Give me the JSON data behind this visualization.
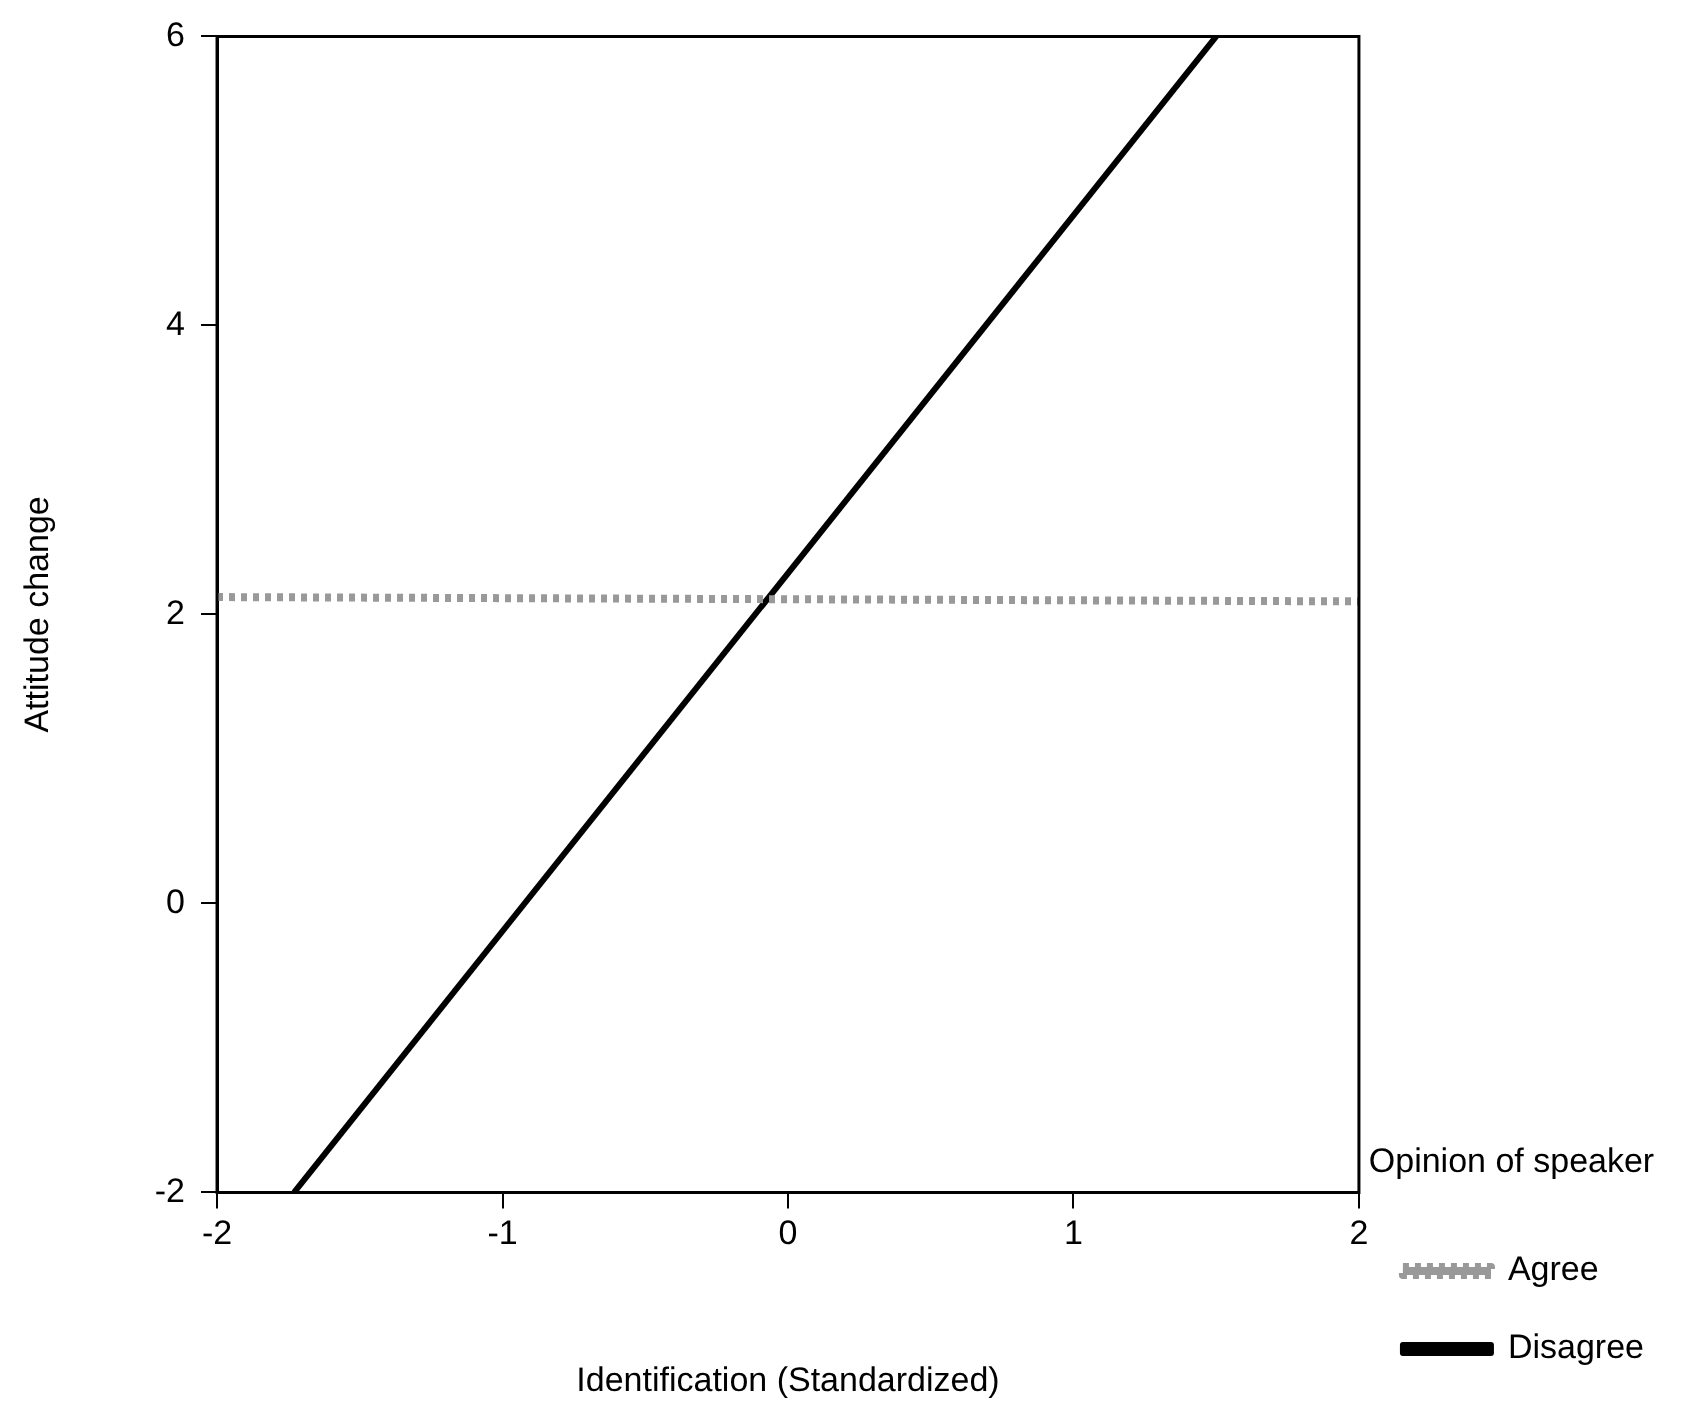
{
  "chart_data": {
    "type": "line",
    "xlabel": "Identification (Standardized)",
    "ylabel": "Attitude change",
    "legend_title": "Opinion of speaker",
    "legend": "bottom right",
    "grid": false,
    "marker": "none",
    "xlim": [
      -2,
      2
    ],
    "xticks": [
      -2,
      -1,
      0,
      1,
      2
    ],
    "ylim": [
      -2,
      6
    ],
    "yticks": [
      -2,
      0,
      2,
      4,
      6
    ],
    "series": [
      {
        "name": "Agree",
        "color": "#999999",
        "line_style": "dotted",
        "x": [
          -2,
          2
        ],
        "values": [
          2.12,
          2.09
        ]
      },
      {
        "name": "Disagree",
        "color": "#000000",
        "line_style": "solid",
        "x": [
          -1.73,
          1.5
        ],
        "values": [
          -2,
          6
        ]
      }
    ]
  }
}
